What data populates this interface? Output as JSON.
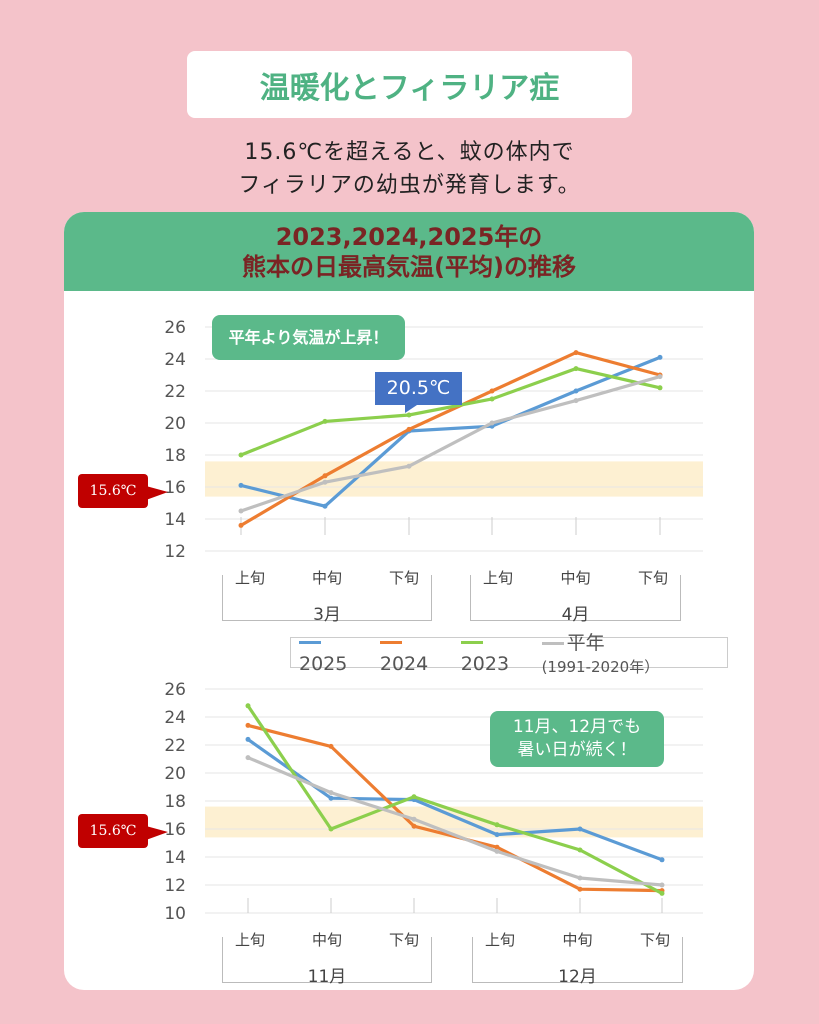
{
  "title": "温暖化とフィラリア症",
  "subtitle": [
    "15.6℃を超えると、蚊の体内で",
    "フィラリアの幼虫が発育します。"
  ],
  "card": {
    "title1": "2023,2024,2025年の",
    "title2": "熊本の日最高気温(平均)の推移"
  },
  "threshold_label": "15.6℃",
  "colors": {
    "2025": "#5b9bd5",
    "2024": "#ed7d31",
    "2023": "#8ccf4d",
    "normal": "#bfbfbf",
    "accent": "#5bb98a",
    "threshold": "#c00000"
  },
  "callouts": {
    "c1": "平年より気温が上昇！",
    "c2": "20.5℃",
    "c3a": "11月、12月でも",
    "c3b": "暑い日が続く！"
  },
  "legend": {
    "s1": "2025",
    "s2": "2024",
    "s3": "2023",
    "s4": "平年",
    "s4note": "(1991-2020年）"
  },
  "periods": [
    "上旬",
    "中旬",
    "下旬"
  ],
  "chart_data": [
    {
      "type": "line",
      "months": [
        "3月",
        "4月"
      ],
      "categories": [
        "上旬",
        "中旬",
        "下旬",
        "上旬",
        "中旬",
        "下旬"
      ],
      "ylim": [
        12,
        26
      ],
      "yticks": [
        12,
        14,
        16,
        18,
        20,
        22,
        24,
        26
      ],
      "threshold": 15.6,
      "series": [
        {
          "name": "2025",
          "values": [
            16.1,
            14.8,
            19.5,
            19.8,
            22.0,
            24.1
          ]
        },
        {
          "name": "2024",
          "values": [
            13.6,
            16.7,
            19.6,
            22.0,
            24.4,
            23.0
          ]
        },
        {
          "name": "2023",
          "values": [
            18.0,
            20.1,
            20.5,
            21.5,
            23.4,
            22.2
          ]
        },
        {
          "name": "平年",
          "values": [
            14.5,
            16.3,
            17.3,
            20.0,
            21.4,
            22.9
          ]
        }
      ]
    },
    {
      "type": "line",
      "months": [
        "11月",
        "12月"
      ],
      "categories": [
        "上旬",
        "中旬",
        "下旬",
        "上旬",
        "中旬",
        "下旬"
      ],
      "ylim": [
        10,
        26
      ],
      "yticks": [
        10,
        12,
        14,
        16,
        18,
        20,
        22,
        24,
        26
      ],
      "threshold": 15.6,
      "series": [
        {
          "name": "2025",
          "values": [
            22.4,
            18.2,
            18.1,
            15.6,
            16.0,
            13.8
          ]
        },
        {
          "name": "2024",
          "values": [
            23.4,
            21.9,
            16.2,
            14.7,
            11.7,
            11.6
          ]
        },
        {
          "name": "2023",
          "values": [
            24.8,
            16.0,
            18.3,
            16.3,
            14.5,
            11.4
          ]
        },
        {
          "name": "平年",
          "values": [
            21.1,
            18.6,
            16.7,
            14.4,
            12.5,
            12.0
          ]
        }
      ]
    }
  ]
}
